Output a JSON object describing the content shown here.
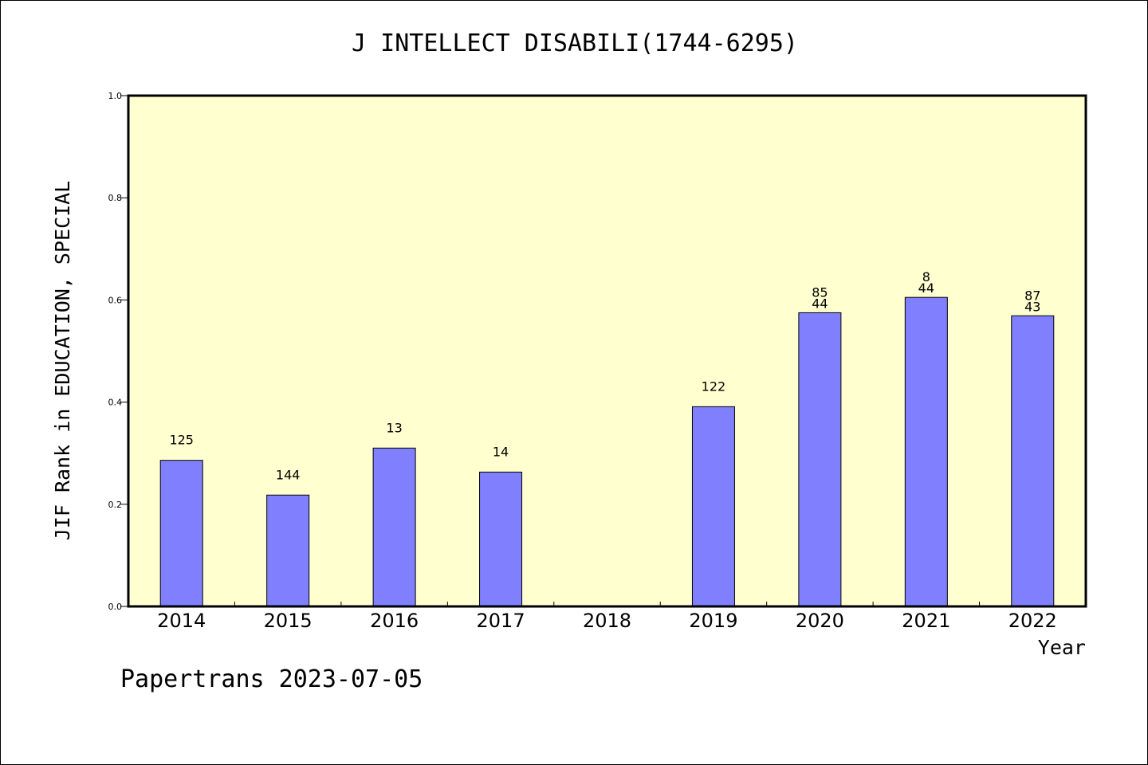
{
  "chart_data": {
    "type": "bar",
    "title": "J INTELLECT DISABILI(1744-6295)",
    "xlabel": "Year",
    "ylabel": "JIF Rank in EDUCATION, SPECIAL",
    "ylim": [
      0,
      1
    ],
    "yticks": [
      "0.0",
      "0.2",
      "0.4",
      "0.6",
      "0.8",
      "1.0"
    ],
    "grid": false,
    "categories": [
      "2014",
      "2015",
      "2016",
      "2017",
      "2018",
      "2019",
      "2020",
      "2021",
      "2022"
    ],
    "values": [
      0.286,
      0.218,
      0.31,
      0.263,
      null,
      0.391,
      0.575,
      0.605,
      0.569
    ],
    "labels": [
      [
        "125"
      ],
      [
        "144"
      ],
      [
        "13"
      ],
      [
        "14"
      ],
      [],
      [
        "122"
      ],
      [
        "85",
        "44"
      ],
      [
        "8",
        "44"
      ],
      [
        "87",
        "43"
      ]
    ],
    "colors": {
      "bar": "#8080ff",
      "plot_background": "#ffffd0",
      "axis": "#000000"
    }
  },
  "footer": {
    "note": "Papertrans 2023-07-05"
  }
}
